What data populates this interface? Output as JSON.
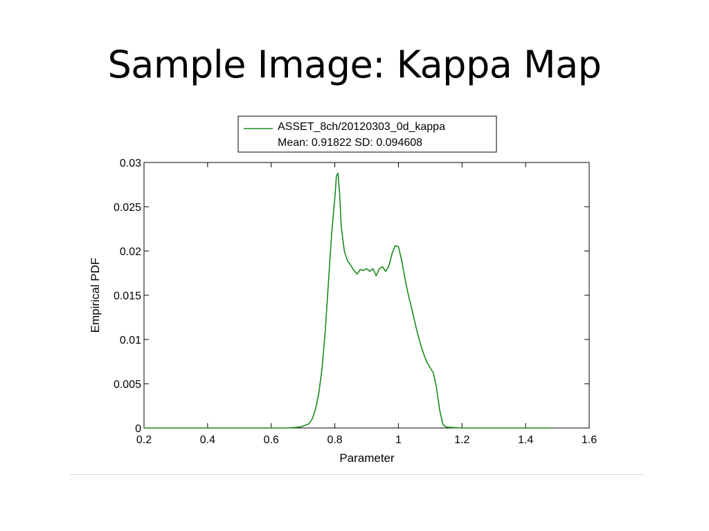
{
  "slide": {
    "title": "Sample Image: Kappa Map"
  },
  "chart_data": {
    "type": "line",
    "xlabel": "Parameter",
    "ylabel": "Empirical PDF",
    "xlim": [
      0.2,
      1.6
    ],
    "ylim": [
      0,
      0.03
    ],
    "x_ticks": [
      "0.2",
      "0.4",
      "0.6",
      "0.8",
      "1",
      "1.2",
      "1.4",
      "1.6"
    ],
    "y_ticks": [
      "0",
      "0.005",
      "0.01",
      "0.015",
      "0.02",
      "0.025",
      "0.03"
    ],
    "grid": false,
    "legend_position": "top-center",
    "series": [
      {
        "name": "ASSET_8ch/20120303_0d_kappa",
        "color": "#1a8a1a",
        "x": [
          0.2,
          0.5,
          0.65,
          0.69,
          0.7,
          0.72,
          0.73,
          0.74,
          0.75,
          0.76,
          0.77,
          0.78,
          0.79,
          0.8,
          0.805,
          0.81,
          0.815,
          0.82,
          0.83,
          0.84,
          0.85,
          0.86,
          0.87,
          0.88,
          0.89,
          0.9,
          0.91,
          0.92,
          0.93,
          0.94,
          0.95,
          0.96,
          0.97,
          0.98,
          0.99,
          1.0,
          1.01,
          1.02,
          1.03,
          1.04,
          1.05,
          1.06,
          1.07,
          1.08,
          1.09,
          1.1,
          1.11,
          1.12,
          1.13,
          1.14,
          1.15,
          1.2,
          1.3,
          1.4,
          1.48
        ],
        "y": [
          0,
          0,
          0,
          0.0001,
          0.0002,
          0.0005,
          0.0011,
          0.0022,
          0.004,
          0.0068,
          0.011,
          0.0165,
          0.022,
          0.026,
          0.0285,
          0.0288,
          0.0265,
          0.0228,
          0.02,
          0.0189,
          0.0184,
          0.0178,
          0.0174,
          0.0179,
          0.0178,
          0.018,
          0.0177,
          0.018,
          0.0172,
          0.018,
          0.0182,
          0.0177,
          0.0183,
          0.0197,
          0.0206,
          0.0205,
          0.019,
          0.017,
          0.0152,
          0.0138,
          0.0122,
          0.0107,
          0.0094,
          0.0083,
          0.0074,
          0.0068,
          0.0062,
          0.0045,
          0.002,
          0.0004,
          0.0001,
          0,
          0,
          0,
          0
        ]
      }
    ],
    "legend": {
      "entries": [
        "ASSET_8ch/20120303_0d_kappa",
        "Mean: 0.91822 SD: 0.094608"
      ]
    }
  }
}
